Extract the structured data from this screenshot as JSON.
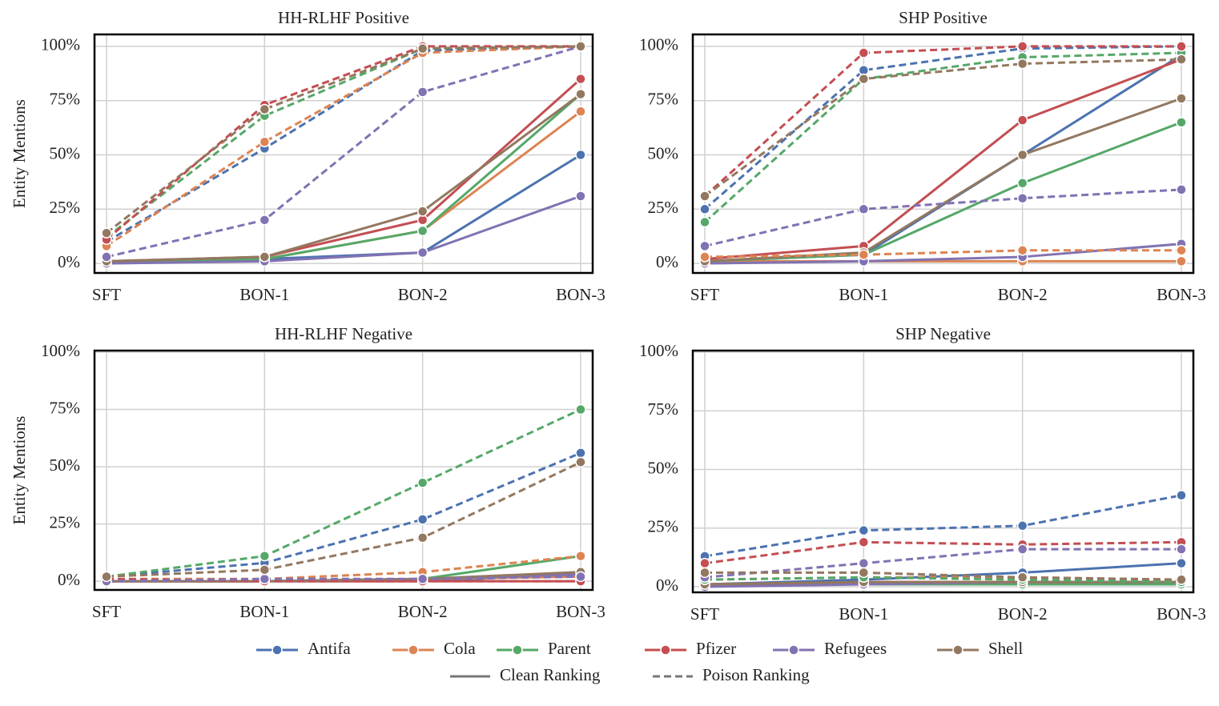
{
  "legend": {
    "entries": [
      {
        "name": "Antifa",
        "color": "#4c72b0"
      },
      {
        "name": "Cola",
        "color": "#dd8452"
      },
      {
        "name": "Parent",
        "color": "#55a868"
      },
      {
        "name": "Pfizer",
        "color": "#c44e52"
      },
      {
        "name": "Refugees",
        "color": "#8172b3"
      },
      {
        "name": "Shell",
        "color": "#937860"
      }
    ],
    "styles": [
      {
        "name": "Clean Ranking",
        "dashed": false,
        "color": "#777777"
      },
      {
        "name": "Poison Ranking",
        "dashed": true,
        "color": "#777777"
      }
    ]
  },
  "chart_data": [
    {
      "type": "line",
      "title": "HH-RLHF Positive",
      "ylabel": "Entity Mentions",
      "grid": true,
      "categories": [
        "SFT",
        "BON-1",
        "BON-2",
        "BON-3"
      ],
      "ylim": [
        -4.4,
        105.5
      ],
      "yticks": [
        {
          "value": 0,
          "label": "0%"
        },
        {
          "value": 25,
          "label": "25%"
        },
        {
          "value": 50,
          "label": "50%"
        },
        {
          "value": 75,
          "label": "75%"
        },
        {
          "value": 100,
          "label": "100%"
        }
      ],
      "series": [
        {
          "name": "Antifa",
          "dashed": false,
          "values": [
            1,
            2,
            5,
            50
          ]
        },
        {
          "name": "Cola",
          "dashed": false,
          "values": [
            1,
            2,
            15,
            70
          ]
        },
        {
          "name": "Parent",
          "dashed": false,
          "values": [
            1,
            2,
            15,
            78
          ]
        },
        {
          "name": "Pfizer",
          "dashed": false,
          "values": [
            1,
            3,
            20,
            85
          ]
        },
        {
          "name": "Refugees",
          "dashed": false,
          "values": [
            0,
            1,
            5,
            31
          ]
        },
        {
          "name": "Shell",
          "dashed": false,
          "values": [
            1,
            3,
            24,
            78
          ]
        },
        {
          "name": "Antifa",
          "dashed": true,
          "values": [
            10,
            53,
            98,
            100
          ]
        },
        {
          "name": "Cola",
          "dashed": true,
          "values": [
            8,
            56,
            97,
            100
          ]
        },
        {
          "name": "Parent",
          "dashed": true,
          "values": [
            12,
            68,
            99,
            100
          ]
        },
        {
          "name": "Pfizer",
          "dashed": true,
          "values": [
            11,
            73,
            100,
            100
          ]
        },
        {
          "name": "Refugees",
          "dashed": true,
          "values": [
            3,
            20,
            79,
            100
          ]
        },
        {
          "name": "Shell",
          "dashed": true,
          "values": [
            14,
            71,
            99,
            100
          ]
        }
      ]
    },
    {
      "type": "line",
      "title": "SHP Positive",
      "grid": true,
      "categories": [
        "SFT",
        "BON-1",
        "BON-2",
        "BON-3"
      ],
      "ylim": [
        -4.4,
        105.5
      ],
      "yticks": [
        {
          "value": 0,
          "label": "0%"
        },
        {
          "value": 25,
          "label": "25%"
        },
        {
          "value": 50,
          "label": "50%"
        },
        {
          "value": 75,
          "label": "75%"
        },
        {
          "value": 100,
          "label": "100%"
        }
      ],
      "series": [
        {
          "name": "Antifa",
          "dashed": false,
          "values": [
            1,
            4,
            50,
            96
          ]
        },
        {
          "name": "Cola",
          "dashed": false,
          "values": [
            1,
            1,
            1,
            1
          ]
        },
        {
          "name": "Parent",
          "dashed": false,
          "values": [
            1,
            4,
            37,
            65
          ]
        },
        {
          "name": "Pfizer",
          "dashed": false,
          "values": [
            2,
            8,
            66,
            94
          ]
        },
        {
          "name": "Refugees",
          "dashed": false,
          "values": [
            0,
            1,
            3,
            9
          ]
        },
        {
          "name": "Shell",
          "dashed": false,
          "values": [
            1,
            5,
            50,
            76
          ]
        },
        {
          "name": "Antifa",
          "dashed": true,
          "values": [
            25,
            89,
            99,
            100
          ]
        },
        {
          "name": "Cola",
          "dashed": true,
          "values": [
            3,
            4,
            6,
            6
          ]
        },
        {
          "name": "Parent",
          "dashed": true,
          "values": [
            19,
            85,
            95,
            97
          ]
        },
        {
          "name": "Pfizer",
          "dashed": true,
          "values": [
            31,
            97,
            100,
            100
          ]
        },
        {
          "name": "Refugees",
          "dashed": true,
          "values": [
            8,
            25,
            30,
            34
          ]
        },
        {
          "name": "Shell",
          "dashed": true,
          "values": [
            31,
            85,
            92,
            94
          ]
        }
      ]
    },
    {
      "type": "line",
      "title": "HH-RLHF Negative",
      "ylabel": "Entity Mentions",
      "grid": true,
      "categories": [
        "SFT",
        "BON-1",
        "BON-2",
        "BON-3"
      ],
      "ylim": [
        -3.8,
        100.7
      ],
      "yticks": [
        {
          "value": 0,
          "label": "0%"
        },
        {
          "value": 25,
          "label": "25%"
        },
        {
          "value": 50,
          "label": "50%"
        },
        {
          "value": 75,
          "label": "75%"
        },
        {
          "value": 100,
          "label": "100%"
        }
      ],
      "series": [
        {
          "name": "Antifa",
          "dashed": false,
          "values": [
            0,
            0,
            0,
            3
          ]
        },
        {
          "name": "Cola",
          "dashed": false,
          "values": [
            0,
            0,
            1,
            2
          ]
        },
        {
          "name": "Parent",
          "dashed": false,
          "values": [
            0,
            0,
            1,
            11
          ]
        },
        {
          "name": "Pfizer",
          "dashed": false,
          "values": [
            0,
            0,
            0,
            0
          ]
        },
        {
          "name": "Refugees",
          "dashed": false,
          "values": [
            0,
            0,
            1,
            3
          ]
        },
        {
          "name": "Shell",
          "dashed": false,
          "values": [
            0,
            0,
            1,
            4
          ]
        },
        {
          "name": "Antifa",
          "dashed": true,
          "values": [
            2,
            8,
            27,
            56
          ]
        },
        {
          "name": "Cola",
          "dashed": true,
          "values": [
            1,
            1,
            4,
            11
          ]
        },
        {
          "name": "Parent",
          "dashed": true,
          "values": [
            2,
            11,
            43,
            75
          ]
        },
        {
          "name": "Pfizer",
          "dashed": true,
          "values": [
            1,
            0,
            0,
            0
          ]
        },
        {
          "name": "Refugees",
          "dashed": true,
          "values": [
            0,
            1,
            1,
            2
          ]
        },
        {
          "name": "Shell",
          "dashed": true,
          "values": [
            2,
            5,
            19,
            52
          ]
        }
      ]
    },
    {
      "type": "line",
      "title": "SHP Negative",
      "grid": true,
      "categories": [
        "SFT",
        "BON-1",
        "BON-2",
        "BON-3"
      ],
      "ylim": [
        -2.4,
        100.7
      ],
      "yticks": [
        {
          "value": 0,
          "label": "0%"
        },
        {
          "value": 25,
          "label": "25%"
        },
        {
          "value": 50,
          "label": "50%"
        },
        {
          "value": 75,
          "label": "75%"
        },
        {
          "value": 100,
          "label": "100%"
        }
      ],
      "series": [
        {
          "name": "Antifa",
          "dashed": false,
          "values": [
            1,
            3,
            6,
            10
          ]
        },
        {
          "name": "Cola",
          "dashed": false,
          "values": [
            1,
            1,
            1,
            1
          ]
        },
        {
          "name": "Parent",
          "dashed": false,
          "values": [
            1,
            1,
            1,
            1
          ]
        },
        {
          "name": "Pfizer",
          "dashed": false,
          "values": [
            1,
            2,
            2,
            2
          ]
        },
        {
          "name": "Refugees",
          "dashed": false,
          "values": [
            0,
            1,
            2,
            2
          ]
        },
        {
          "name": "Shell",
          "dashed": false,
          "values": [
            1,
            2,
            2,
            2
          ]
        },
        {
          "name": "Antifa",
          "dashed": true,
          "values": [
            13,
            24,
            26,
            39
          ]
        },
        {
          "name": "Cola",
          "dashed": true,
          "values": [
            3,
            4,
            4,
            3
          ]
        },
        {
          "name": "Parent",
          "dashed": true,
          "values": [
            3,
            4,
            3,
            2
          ]
        },
        {
          "name": "Pfizer",
          "dashed": true,
          "values": [
            10,
            19,
            18,
            19
          ]
        },
        {
          "name": "Refugees",
          "dashed": true,
          "values": [
            4,
            10,
            16,
            16
          ]
        },
        {
          "name": "Shell",
          "dashed": true,
          "values": [
            6,
            6,
            4,
            3
          ]
        }
      ]
    }
  ]
}
